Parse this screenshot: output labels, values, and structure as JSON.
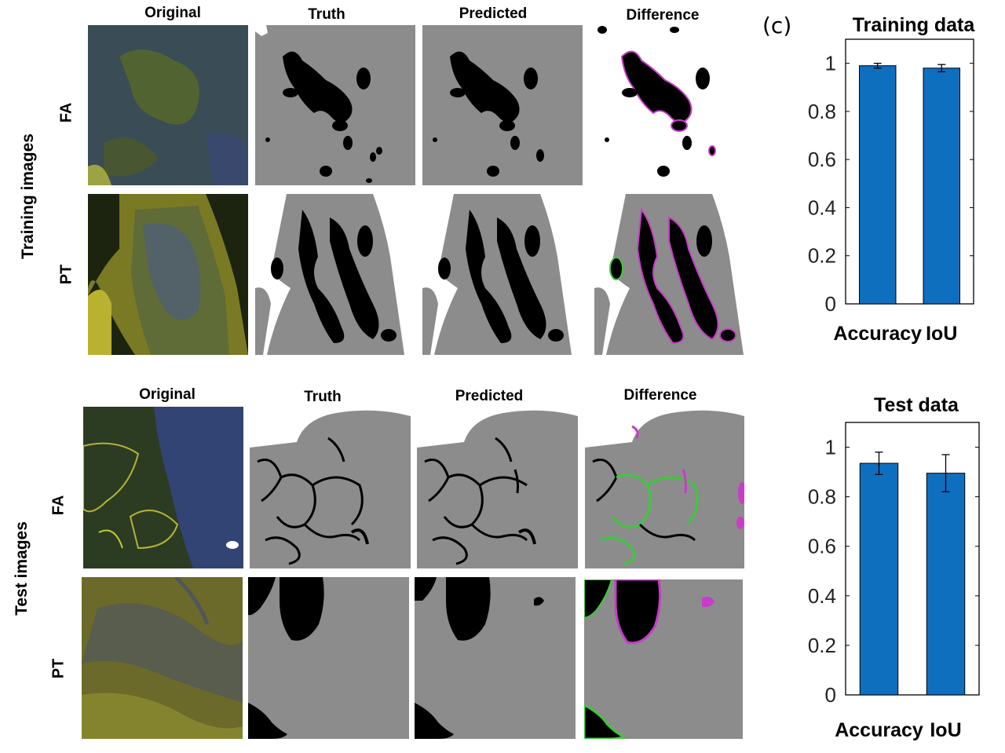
{
  "figure": {
    "panel_label": "(c)",
    "training": {
      "group_label": "Training images",
      "columns": [
        "Original",
        "Truth",
        "Predicted",
        "Difference"
      ],
      "rows": [
        "FA",
        "PT"
      ]
    },
    "test": {
      "group_label": "Test images",
      "columns": [
        "Original",
        "Truth",
        "Predicted",
        "Difference"
      ],
      "rows": [
        "FA",
        "PT"
      ]
    }
  },
  "colors": {
    "bar": "#0e6fbf",
    "mask_gray": "#8c8c8c",
    "mask_black": "#000000",
    "diff_magenta": "#c83cc8",
    "diff_green": "#3cc83c",
    "tissue_green": "#4a5a22",
    "tissue_blue": "#3b4a8a",
    "tissue_yellow": "#c8c83a"
  },
  "chart_data": [
    {
      "type": "bar",
      "title": "Training data",
      "categories": [
        "Accuracy",
        "IoU"
      ],
      "values": [
        0.99,
        0.98
      ],
      "errors": [
        0.01,
        0.015
      ],
      "ylim": [
        0,
        1.1
      ],
      "yticks": [
        "0",
        "0.2",
        "0.4",
        "0.6",
        "0.8",
        "1"
      ],
      "xlabel": "",
      "ylabel": ""
    },
    {
      "type": "bar",
      "title": "Test data",
      "categories": [
        "Accuracy",
        "IoU"
      ],
      "values": [
        0.935,
        0.895
      ],
      "errors": [
        0.045,
        0.075
      ],
      "ylim": [
        0,
        1.1
      ],
      "yticks": [
        "0",
        "0.2",
        "0.4",
        "0.6",
        "0.8",
        "1"
      ],
      "xlabel": "",
      "ylabel": ""
    }
  ]
}
